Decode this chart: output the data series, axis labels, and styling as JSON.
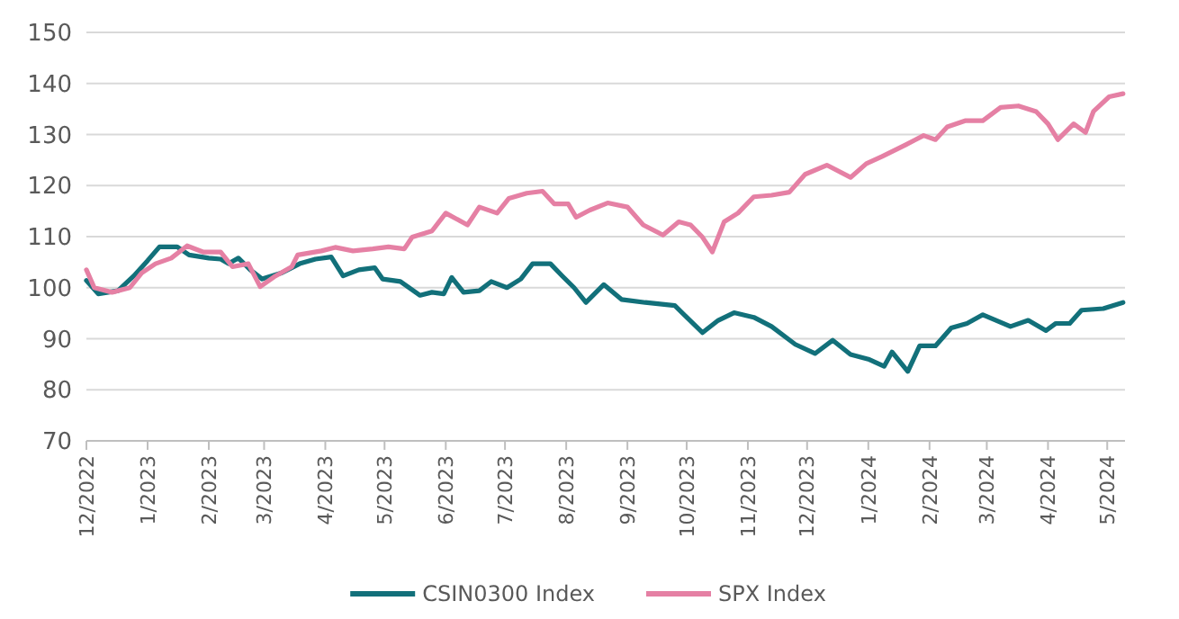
{
  "chart_data": {
    "type": "line",
    "ylim": [
      70,
      150
    ],
    "yticks": [
      70,
      80,
      90,
      100,
      110,
      120,
      130,
      140,
      150
    ],
    "xlim": [
      "2022-12-01",
      "2024-05-10"
    ],
    "xticks": [
      {
        "value": "2022-12-01",
        "label": "12/2022"
      },
      {
        "value": "2023-01-01",
        "label": "1/2023"
      },
      {
        "value": "2023-02-01",
        "label": "2/2023"
      },
      {
        "value": "2023-03-01",
        "label": "3/2023"
      },
      {
        "value": "2023-04-01",
        "label": "4/2023"
      },
      {
        "value": "2023-05-01",
        "label": "5/2023"
      },
      {
        "value": "2023-06-01",
        "label": "6/2023"
      },
      {
        "value": "2023-07-01",
        "label": "7/2023"
      },
      {
        "value": "2023-08-01",
        "label": "8/2023"
      },
      {
        "value": "2023-09-01",
        "label": "9/2023"
      },
      {
        "value": "2023-10-01",
        "label": "10/2023"
      },
      {
        "value": "2023-11-01",
        "label": "11/2023"
      },
      {
        "value": "2023-12-01",
        "label": "12/2023"
      },
      {
        "value": "2024-01-01",
        "label": "1/2024"
      },
      {
        "value": "2024-02-01",
        "label": "2/2024"
      },
      {
        "value": "2024-03-01",
        "label": "3/2024"
      },
      {
        "value": "2024-04-01",
        "label": "4/2024"
      },
      {
        "value": "2024-05-01",
        "label": "5/2024"
      }
    ],
    "grid": "y",
    "legend": "bottom",
    "line_style": "solid",
    "marker": "none",
    "series": [
      {
        "name": "CSIN0300 Index",
        "color": "#12707a",
        "x": [
          "2022-12-01",
          "2022-12-07",
          "2022-12-17",
          "2022-12-25",
          "2023-01-01",
          "2023-01-07",
          "2023-01-16",
          "2023-01-22",
          "2023-02-01",
          "2023-02-07",
          "2023-02-11",
          "2023-02-16",
          "2023-02-22",
          "2023-02-28",
          "2023-03-10",
          "2023-03-19",
          "2023-03-27",
          "2023-04-04",
          "2023-04-10",
          "2023-04-18",
          "2023-04-26",
          "2023-04-30",
          "2023-05-09",
          "2023-05-19",
          "2023-05-25",
          "2023-05-31",
          "2023-06-04",
          "2023-06-10",
          "2023-06-18",
          "2023-06-24",
          "2023-07-02",
          "2023-07-09",
          "2023-07-15",
          "2023-07-24",
          "2023-07-30",
          "2023-08-05",
          "2023-08-11",
          "2023-08-20",
          "2023-08-29",
          "2023-09-10",
          "2023-09-25",
          "2023-10-09",
          "2023-10-17",
          "2023-10-25",
          "2023-11-04",
          "2023-11-13",
          "2023-11-25",
          "2023-12-05",
          "2023-12-14",
          "2023-12-23",
          "2024-01-01",
          "2024-01-09",
          "2024-01-13",
          "2024-01-21",
          "2024-01-27",
          "2024-02-04",
          "2024-02-12",
          "2024-02-20",
          "2024-02-28",
          "2024-03-13",
          "2024-03-22",
          "2024-03-31",
          "2024-04-05",
          "2024-04-12",
          "2024-04-18",
          "2024-04-29",
          "2024-05-09"
        ],
        "values": [
          101.4,
          98.8,
          99.4,
          102.3,
          105.3,
          108,
          108,
          106.4,
          105.8,
          105.6,
          104.7,
          105.8,
          103.5,
          101.7,
          102.9,
          104.7,
          105.6,
          106,
          102.3,
          103.5,
          103.9,
          101.7,
          101.2,
          98.5,
          99.1,
          98.8,
          102,
          99.1,
          99.4,
          101.2,
          100,
          101.7,
          104.7,
          104.7,
          102.3,
          100,
          97.1,
          100.6,
          97.7,
          97.1,
          96.5,
          91.2,
          93.6,
          95.1,
          94.2,
          92.4,
          88.9,
          87.1,
          89.7,
          86.9,
          86,
          84.6,
          87.4,
          83.6,
          88.6,
          88.6,
          92.1,
          93,
          94.7,
          92.4,
          93.6,
          91.6,
          93,
          93,
          95.6,
          95.9,
          97.1
        ]
      },
      {
        "name": "SPX Index",
        "color": "#e580a4",
        "x": [
          "2022-12-01",
          "2022-12-05",
          "2022-12-14",
          "2022-12-23",
          "2022-12-29",
          "2023-01-05",
          "2023-01-13",
          "2023-01-21",
          "2023-01-29",
          "2023-02-07",
          "2023-02-13",
          "2023-02-21",
          "2023-02-27",
          "2023-03-06",
          "2023-03-15",
          "2023-03-18",
          "2023-03-30",
          "2023-04-06",
          "2023-04-15",
          "2023-04-25",
          "2023-05-03",
          "2023-05-11",
          "2023-05-15",
          "2023-05-25",
          "2023-06-01",
          "2023-06-12",
          "2023-06-18",
          "2023-06-27",
          "2023-07-03",
          "2023-07-12",
          "2023-07-20",
          "2023-07-26",
          "2023-08-02",
          "2023-08-06",
          "2023-08-13",
          "2023-08-22",
          "2023-09-01",
          "2023-09-09",
          "2023-09-19",
          "2023-09-27",
          "2023-10-03",
          "2023-10-09",
          "2023-10-14",
          "2023-10-20",
          "2023-10-27",
          "2023-11-04",
          "2023-11-13",
          "2023-11-22",
          "2023-11-30",
          "2023-12-11",
          "2023-12-23",
          "2023-12-31",
          "2024-01-08",
          "2024-01-20",
          "2024-01-29",
          "2024-02-04",
          "2024-02-10",
          "2024-02-19",
          "2024-02-28",
          "2024-03-08",
          "2024-03-17",
          "2024-03-26",
          "2024-04-01",
          "2024-04-06",
          "2024-04-14",
          "2024-04-20",
          "2024-04-24",
          "2024-05-02",
          "2024-05-09"
        ],
        "values": [
          103.5,
          100,
          99.1,
          100,
          102.9,
          104.7,
          105.8,
          108.2,
          107,
          107,
          104.1,
          104.7,
          100.2,
          102.1,
          104.1,
          106.4,
          107.2,
          107.9,
          107.2,
          107.6,
          108,
          107.6,
          109.9,
          111.1,
          114.6,
          112.3,
          115.8,
          114.6,
          117.5,
          118.5,
          118.9,
          116.4,
          116.4,
          113.8,
          115.2,
          116.6,
          115.8,
          112.3,
          110.3,
          112.9,
          112.3,
          109.9,
          107,
          112.9,
          114.6,
          117.8,
          118.1,
          118.7,
          122.2,
          124,
          121.6,
          124.3,
          125.7,
          128,
          129.8,
          129,
          131.5,
          132.7,
          132.7,
          135.3,
          135.6,
          134.5,
          132.1,
          129,
          132.1,
          130.4,
          134.5,
          137.4,
          138
        ]
      }
    ]
  }
}
